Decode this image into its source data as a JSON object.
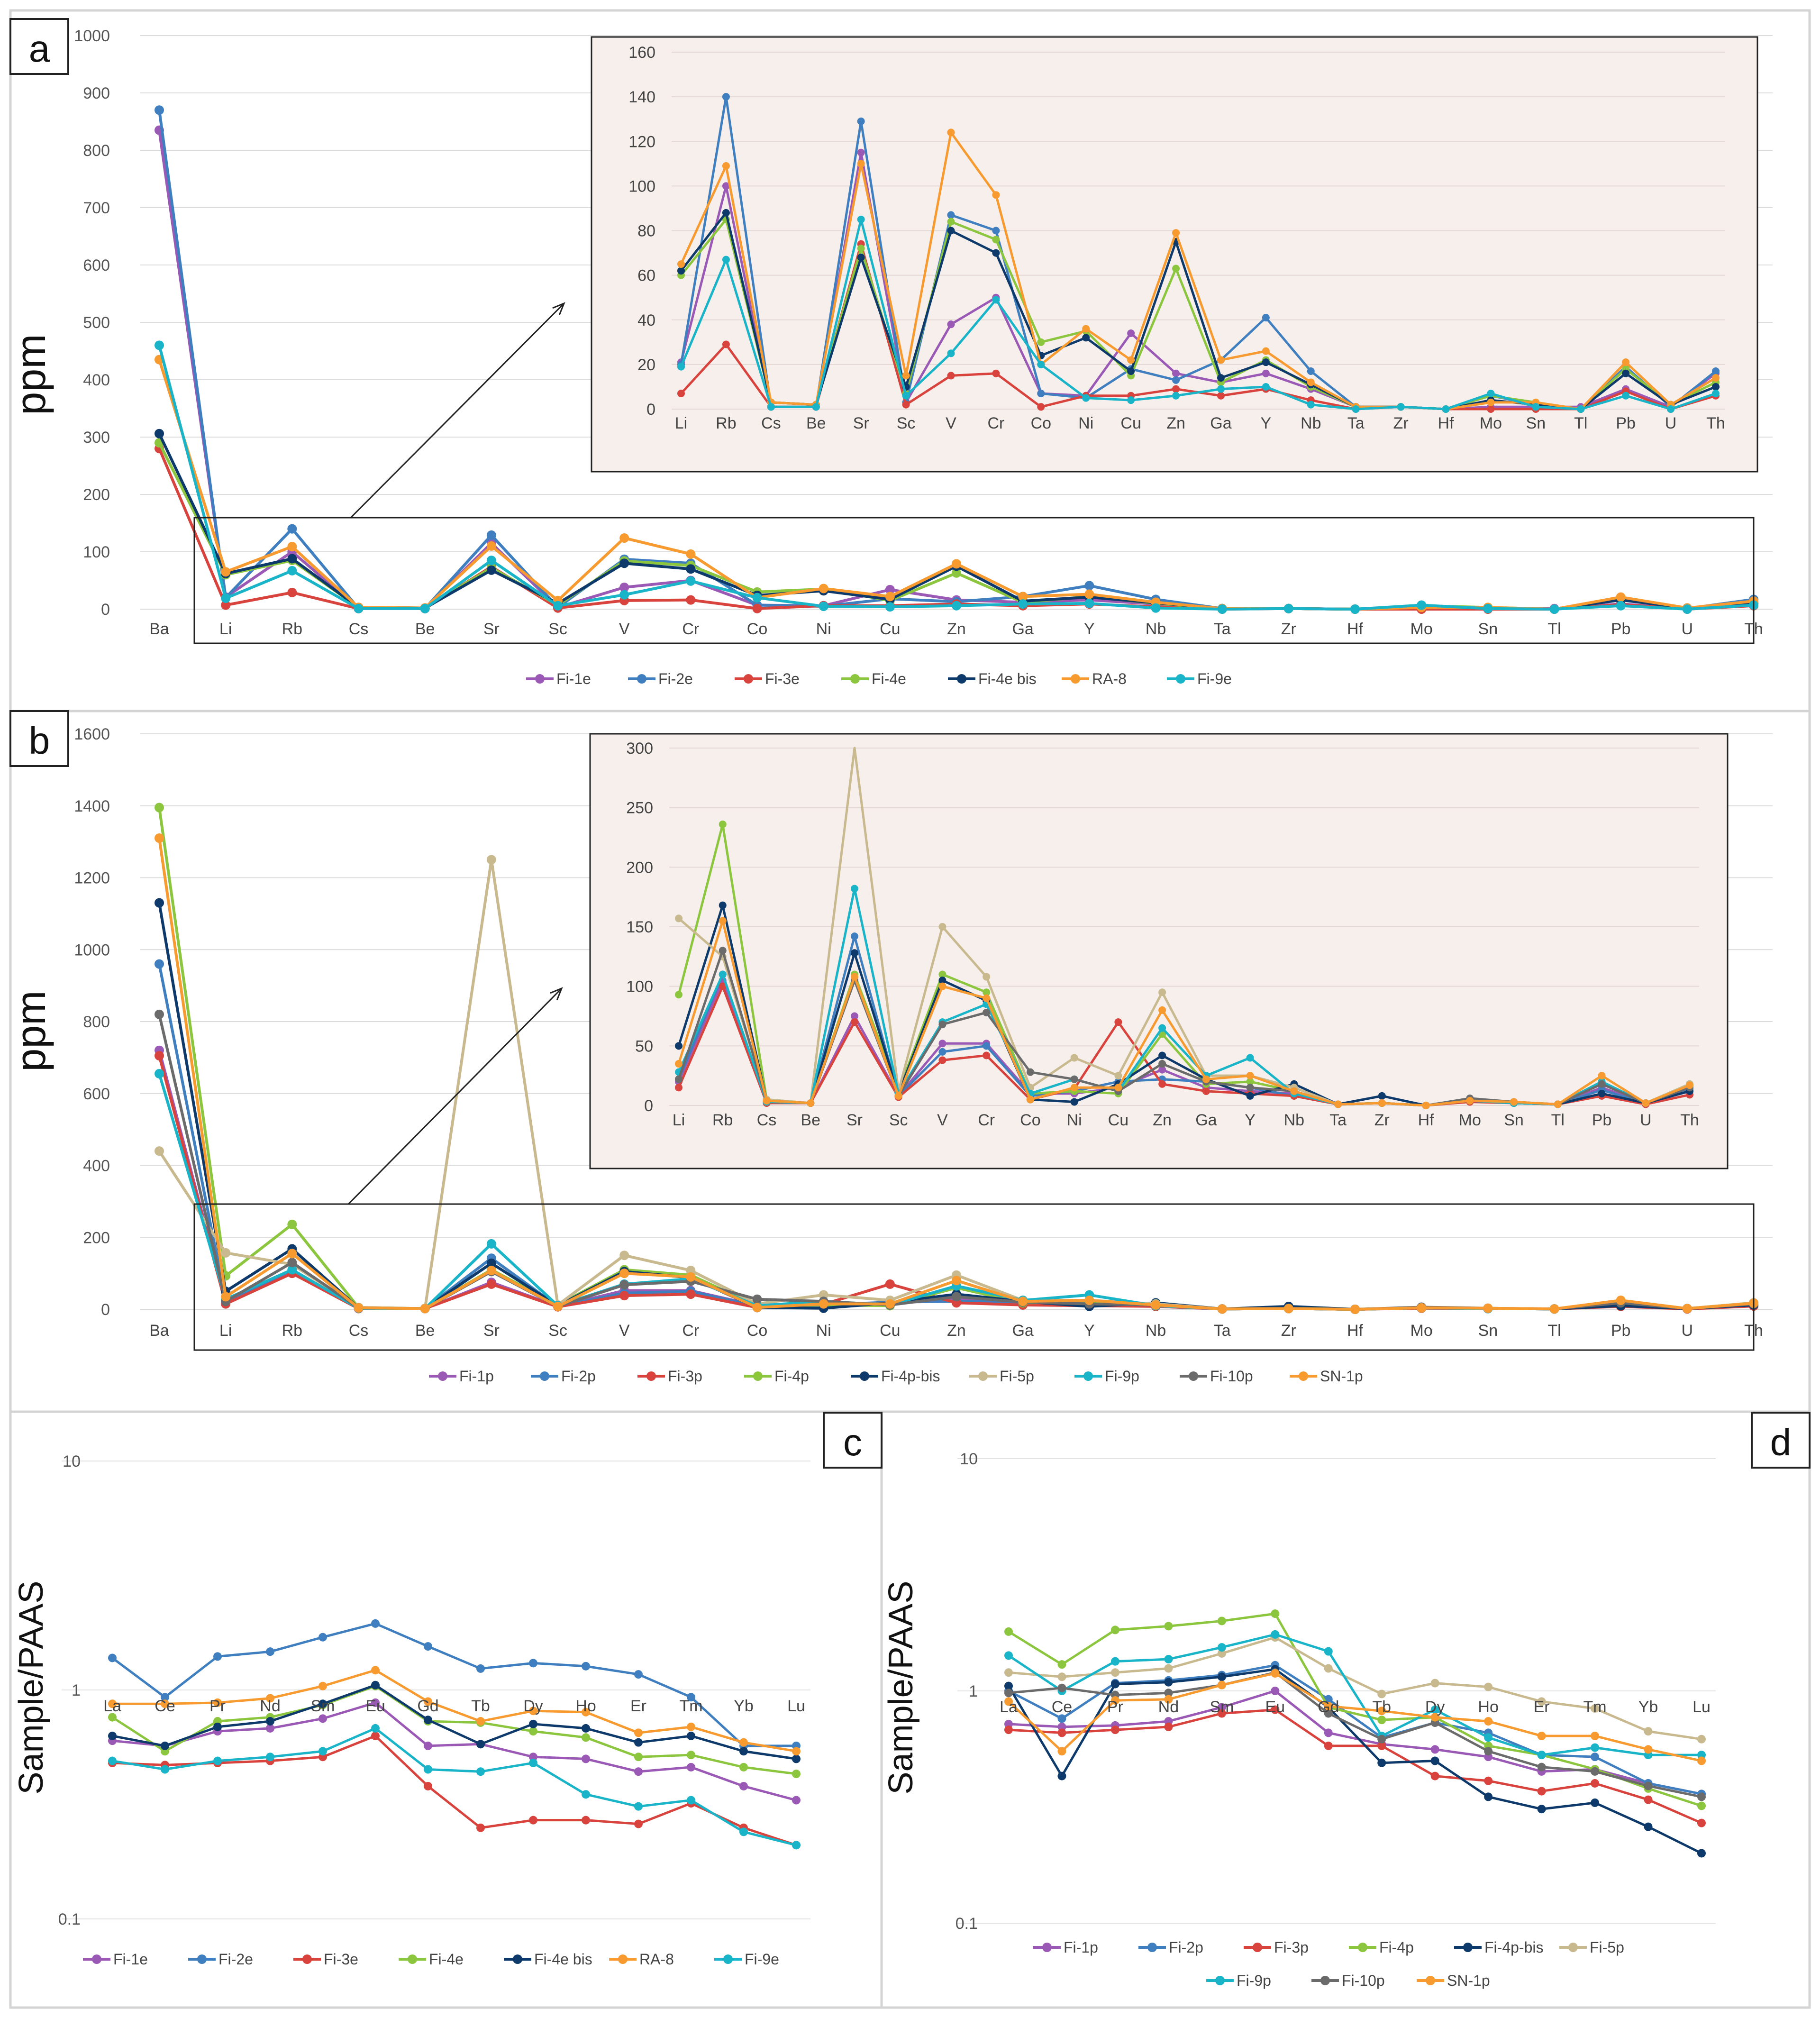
{
  "figure": {
    "panel_labels": [
      "a",
      "b",
      "c",
      "d"
    ]
  },
  "colors": {
    "Fi-1e": "#9b59b6",
    "Fi-2e": "#3f7fbf",
    "Fi-3e": "#d9433d",
    "Fi-4e": "#8cc63f",
    "Fi-4e bis": "#0d3a6a",
    "RA-8": "#f79a30",
    "Fi-9e": "#19b4c8",
    "Fi-1p": "#9b59b6",
    "Fi-2p": "#3f7fbf",
    "Fi-3p": "#d9433d",
    "Fi-4p": "#8cc63f",
    "Fi-4p-bis": "#0d3a6a",
    "Fi-5p": "#c9b98f",
    "Fi-9p": "#19b4c8",
    "Fi-10p": "#6b6b6b",
    "SN-1p": "#f79a30"
  },
  "chart_data": [
    {
      "id": "a",
      "type": "line",
      "panel_label": "a",
      "ylabel": "ppm",
      "ylim": [
        0,
        1000
      ],
      "yticks": [
        0,
        100,
        200,
        300,
        400,
        500,
        600,
        700,
        800,
        900,
        1000
      ],
      "categories": [
        "Ba",
        "Li",
        "Rb",
        "Cs",
        "Be",
        "Sr",
        "Sc",
        "V",
        "Cr",
        "Co",
        "Ni",
        "Cu",
        "Zn",
        "Ga",
        "Y",
        "Nb",
        "Ta",
        "Zr",
        "Hf",
        "Mo",
        "Sn",
        "Tl",
        "Pb",
        "U",
        "Th"
      ],
      "series": [
        {
          "name": "Fi-1e",
          "values": [
            835,
            21,
            100,
            1,
            1,
            115,
            3,
            38,
            50,
            7,
            6,
            34,
            16,
            12,
            16,
            9,
            1,
            1,
            0,
            1,
            1,
            1,
            9,
            1,
            16
          ]
        },
        {
          "name": "Fi-2e",
          "values": [
            870,
            20,
            140,
            1,
            1,
            129,
            3,
            87,
            80,
            7,
            5,
            18,
            13,
            22,
            41,
            17,
            1,
            1,
            0,
            6,
            2,
            0,
            19,
            1,
            17
          ]
        },
        {
          "name": "Fi-3e",
          "values": [
            280,
            7,
            29,
            1,
            1,
            74,
            2,
            15,
            16,
            1,
            6,
            6,
            9,
            6,
            9,
            4,
            0,
            1,
            0,
            0,
            0,
            0,
            8,
            0,
            6
          ]
        },
        {
          "name": "Fi-4e",
          "values": [
            290,
            60,
            85,
            3,
            2,
            72,
            7,
            84,
            76,
            30,
            35,
            15,
            63,
            12,
            22,
            10,
            1,
            1,
            0,
            6,
            3,
            0,
            18,
            2,
            12
          ]
        },
        {
          "name": "Fi-4e bis",
          "values": [
            306,
            62,
            88,
            3,
            2,
            68,
            10,
            80,
            70,
            24,
            32,
            17,
            75,
            14,
            21,
            11,
            1,
            1,
            0,
            4,
            2,
            0,
            16,
            2,
            10
          ]
        },
        {
          "name": "RA-8",
          "values": [
            435,
            65,
            109,
            3,
            2,
            110,
            15,
            124,
            96,
            20,
            36,
            22,
            79,
            22,
            26,
            12,
            1,
            1,
            0,
            3,
            3,
            0,
            21,
            2,
            14
          ]
        },
        {
          "name": "Fi-9e",
          "values": [
            460,
            19,
            67,
            1,
            1,
            85,
            6,
            25,
            49,
            20,
            5,
            4,
            6,
            9,
            10,
            2,
            0,
            1,
            0,
            7,
            1,
            0,
            6,
            0,
            7
          ]
        }
      ],
      "inset": {
        "ylim": [
          0,
          160
        ],
        "yticks": [
          0,
          20,
          40,
          60,
          80,
          100,
          120,
          140,
          160
        ],
        "categories": [
          "Li",
          "Rb",
          "Cs",
          "Be",
          "Sr",
          "Sc",
          "V",
          "Cr",
          "Co",
          "Ni",
          "Cu",
          "Zn",
          "Ga",
          "Y",
          "Nb",
          "Ta",
          "Zr",
          "Hf",
          "Mo",
          "Sn",
          "Tl",
          "Pb",
          "U",
          "Th"
        ]
      }
    },
    {
      "id": "b",
      "type": "line",
      "panel_label": "b",
      "ylabel": "ppm",
      "ylim": [
        0,
        1600
      ],
      "yticks": [
        0,
        200,
        400,
        600,
        800,
        1000,
        1200,
        1400,
        1600
      ],
      "categories": [
        "Ba",
        "Li",
        "Rb",
        "Cs",
        "Be",
        "Sr",
        "Sc",
        "V",
        "Cr",
        "Co",
        "Ni",
        "Cu",
        "Zn",
        "Ga",
        "Y",
        "Nb",
        "Ta",
        "Zr",
        "Hf",
        "Mo",
        "Sn",
        "Tl",
        "Pb",
        "U",
        "Th"
      ],
      "series": [
        {
          "name": "Fi-1p",
          "values": [
            720,
            20,
            105,
            3,
            2,
            75,
            8,
            52,
            52,
            10,
            10,
            15,
            30,
            15,
            12,
            10,
            1,
            2,
            0,
            4,
            2,
            1,
            15,
            2,
            12
          ]
        },
        {
          "name": "Fi-2p",
          "values": [
            960,
            22,
            110,
            3,
            2,
            142,
            8,
            45,
            50,
            8,
            12,
            20,
            22,
            20,
            15,
            8,
            1,
            2,
            0,
            4,
            2,
            1,
            13,
            2,
            14
          ]
        },
        {
          "name": "Fi-3p",
          "values": [
            705,
            15,
            100,
            2,
            2,
            70,
            7,
            38,
            42,
            5,
            14,
            70,
            18,
            12,
            10,
            8,
            1,
            2,
            0,
            3,
            2,
            1,
            8,
            1,
            9
          ]
        },
        {
          "name": "Fi-4p",
          "values": [
            1395,
            93,
            236,
            5,
            2,
            110,
            12,
            110,
            95,
            10,
            12,
            10,
            60,
            18,
            20,
            12,
            1,
            2,
            0,
            4,
            2,
            1,
            20,
            2,
            18
          ]
        },
        {
          "name": "Fi-4p-bis",
          "values": [
            1130,
            50,
            168,
            4,
            2,
            128,
            10,
            105,
            88,
            5,
            3,
            18,
            42,
            22,
            8,
            18,
            1,
            8,
            0,
            4,
            2,
            1,
            10,
            2,
            12
          ]
        },
        {
          "name": "Fi-5p",
          "values": [
            440,
            157,
            125,
            5,
            2,
            1250,
            12,
            150,
            108,
            15,
            40,
            25,
            95,
            25,
            25,
            15,
            1,
            2,
            0,
            5,
            3,
            1,
            20,
            2,
            18
          ]
        },
        {
          "name": "Fi-9p",
          "values": [
            655,
            28,
            110,
            3,
            2,
            182,
            10,
            70,
            85,
            10,
            22,
            12,
            65,
            25,
            40,
            10,
            1,
            2,
            0,
            4,
            2,
            1,
            20,
            2,
            16
          ]
        },
        {
          "name": "Fi-10p",
          "values": [
            820,
            22,
            130,
            4,
            2,
            105,
            8,
            68,
            78,
            28,
            22,
            12,
            35,
            20,
            15,
            12,
            1,
            2,
            0,
            6,
            3,
            1,
            18,
            2,
            15
          ]
        },
        {
          "name": "SN-1p",
          "values": [
            1310,
            35,
            155,
            4,
            2,
            108,
            8,
            100,
            90,
            5,
            15,
            15,
            80,
            22,
            25,
            12,
            1,
            2,
            0,
            4,
            3,
            1,
            25,
            2,
            17
          ]
        }
      ],
      "inset": {
        "ylim": [
          0,
          300
        ],
        "yticks": [
          0,
          50,
          100,
          150,
          200,
          250,
          300
        ],
        "categories": [
          "Li",
          "Rb",
          "Cs",
          "Be",
          "Sr",
          "Sc",
          "V",
          "Cr",
          "Co",
          "Ni",
          "Cu",
          "Zn",
          "Ga",
          "Y",
          "Nb",
          "Ta",
          "Zr",
          "Hf",
          "Mo",
          "Sn",
          "Tl",
          "Pb",
          "U",
          "Th"
        ]
      }
    },
    {
      "id": "c",
      "type": "line",
      "panel_label": "c",
      "yscale": "log",
      "ylabel": "Sample/PAAS",
      "ylim": [
        0.1,
        10
      ],
      "yticks": [
        0.1,
        1,
        10
      ],
      "categories": [
        "La",
        "Ce",
        "Pr",
        "Nd",
        "Sm",
        "Eu",
        "Gd",
        "Tb",
        "Dy",
        "Ho",
        "Er",
        "Tm",
        "Yb",
        "Lu"
      ],
      "series": [
        {
          "name": "Fi-1e",
          "values": [
            0.6,
            0.57,
            0.66,
            0.68,
            0.75,
            0.88,
            0.57,
            0.58,
            0.51,
            0.5,
            0.44,
            0.46,
            0.38,
            0.33
          ]
        },
        {
          "name": "Fi-2e",
          "values": [
            1.38,
            0.93,
            1.4,
            1.47,
            1.7,
            1.95,
            1.55,
            1.24,
            1.31,
            1.27,
            1.17,
            0.93,
            0.57,
            0.57
          ]
        },
        {
          "name": "Fi-3e",
          "values": [
            0.48,
            0.47,
            0.48,
            0.49,
            0.51,
            0.63,
            0.38,
            0.25,
            0.27,
            0.27,
            0.26,
            0.32,
            0.25,
            0.21
          ]
        },
        {
          "name": "Fi-4e",
          "values": [
            0.76,
            0.54,
            0.73,
            0.76,
            0.86,
            1.04,
            0.73,
            0.72,
            0.66,
            0.62,
            0.51,
            0.52,
            0.46,
            0.43
          ]
        },
        {
          "name": "Fi-4e bis",
          "values": [
            0.63,
            0.57,
            0.69,
            0.73,
            0.87,
            1.05,
            0.74,
            0.58,
            0.71,
            0.68,
            0.59,
            0.63,
            0.54,
            0.5
          ]
        },
        {
          "name": "RA-8",
          "values": [
            0.87,
            0.87,
            0.88,
            0.92,
            1.04,
            1.22,
            0.89,
            0.73,
            0.81,
            0.8,
            0.65,
            0.69,
            0.59,
            0.54
          ]
        },
        {
          "name": "Fi-9e",
          "values": [
            0.49,
            0.45,
            0.49,
            0.51,
            0.54,
            0.68,
            0.45,
            0.44,
            0.48,
            0.35,
            0.31,
            0.33,
            0.24,
            0.21
          ]
        }
      ]
    },
    {
      "id": "d",
      "type": "line",
      "panel_label": "d",
      "yscale": "log",
      "ylabel": "Sample/PAAS",
      "ylim": [
        0.1,
        10
      ],
      "yticks": [
        0.1,
        1,
        10
      ],
      "categories": [
        "La",
        "Ce",
        "Pr",
        "Nd",
        "Sm",
        "Eu",
        "Gd",
        "Tb",
        "Dy",
        "Ho",
        "Er",
        "Tm",
        "Yb",
        "Lu"
      ],
      "series": [
        {
          "name": "Fi-1p",
          "values": [
            0.72,
            0.7,
            0.71,
            0.74,
            0.85,
            1.0,
            0.66,
            0.59,
            0.56,
            0.52,
            0.45,
            0.46,
            0.4,
            0.36
          ]
        },
        {
          "name": "Fi-2p",
          "values": [
            1.0,
            0.76,
            1.08,
            1.11,
            1.17,
            1.29,
            0.92,
            0.63,
            0.73,
            0.66,
            0.53,
            0.52,
            0.4,
            0.36
          ]
        },
        {
          "name": "Fi-3p",
          "values": [
            0.68,
            0.66,
            0.68,
            0.7,
            0.8,
            0.83,
            0.58,
            0.58,
            0.43,
            0.41,
            0.37,
            0.4,
            0.34,
            0.27
          ]
        },
        {
          "name": "Fi-4p",
          "values": [
            1.8,
            1.3,
            1.83,
            1.9,
            2.0,
            2.15,
            0.85,
            0.75,
            0.77,
            0.58,
            0.53,
            0.46,
            0.38,
            0.32
          ]
        },
        {
          "name": "Fi-4p-bis",
          "values": [
            1.05,
            0.43,
            1.07,
            1.09,
            1.15,
            1.24,
            0.85,
            0.49,
            0.5,
            0.35,
            0.31,
            0.33,
            0.26,
            0.2
          ]
        },
        {
          "name": "Fi-5p",
          "values": [
            1.2,
            1.15,
            1.2,
            1.25,
            1.45,
            1.7,
            1.25,
            0.97,
            1.08,
            1.04,
            0.9,
            0.84,
            0.67,
            0.62
          ]
        },
        {
          "name": "Fi-9p",
          "values": [
            1.42,
            1.0,
            1.34,
            1.37,
            1.54,
            1.75,
            1.48,
            0.64,
            0.83,
            0.63,
            0.53,
            0.57,
            0.53,
            0.53
          ]
        },
        {
          "name": "Fi-10p",
          "values": [
            0.98,
            1.03,
            0.96,
            0.98,
            1.06,
            1.2,
            0.8,
            0.62,
            0.73,
            0.55,
            0.47,
            0.45,
            0.39,
            0.35
          ]
        },
        {
          "name": "SN-1p",
          "values": [
            0.9,
            0.55,
            0.91,
            0.92,
            1.06,
            1.19,
            0.86,
            0.82,
            0.77,
            0.74,
            0.64,
            0.64,
            0.56,
            0.5
          ]
        }
      ]
    }
  ]
}
